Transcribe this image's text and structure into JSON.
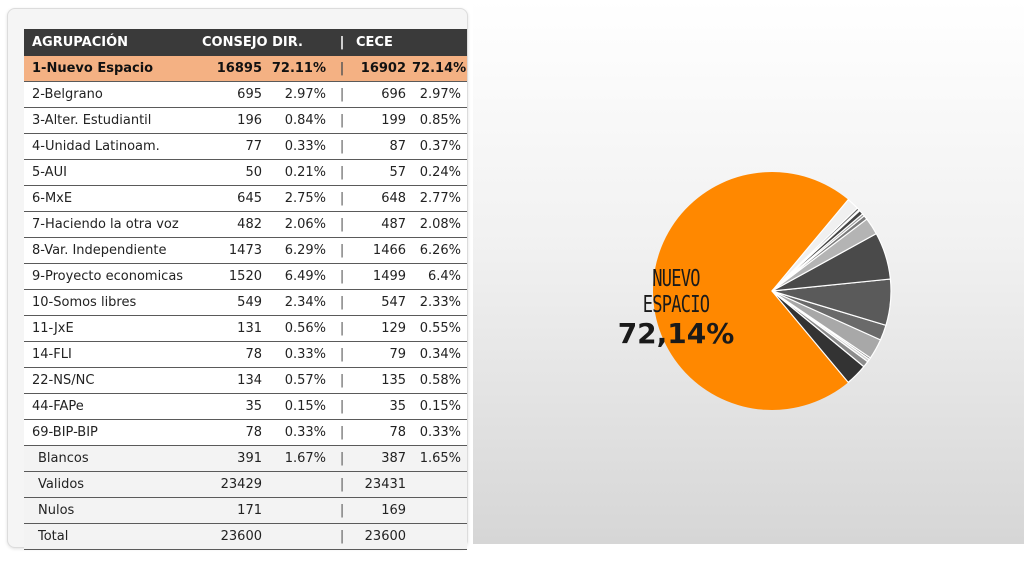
{
  "table": {
    "headers": {
      "group": "AGRUPACIÓN",
      "consejo": "CONSEJO DIR.",
      "sep": "|",
      "cece": "CECE"
    },
    "rows": [
      {
        "name": "1-Nuevo Espacio",
        "cd_votes": "16895",
        "cd_pct": "72.11%",
        "sep": "|",
        "ce_votes": "16902",
        "ce_pct": "72.14%"
      },
      {
        "name": "2-Belgrano",
        "cd_votes": "695",
        "cd_pct": "2.97%",
        "sep": "|",
        "ce_votes": "696",
        "ce_pct": "2.97%"
      },
      {
        "name": "3-Alter. Estudiantil",
        "cd_votes": "196",
        "cd_pct": "0.84%",
        "sep": "|",
        "ce_votes": "199",
        "ce_pct": "0.85%"
      },
      {
        "name": "4-Unidad Latinoam.",
        "cd_votes": "77",
        "cd_pct": "0.33%",
        "sep": "|",
        "ce_votes": "87",
        "ce_pct": "0.37%"
      },
      {
        "name": "5-AUI",
        "cd_votes": "50",
        "cd_pct": "0.21%",
        "sep": "|",
        "ce_votes": "57",
        "ce_pct": "0.24%"
      },
      {
        "name": "6-MxE",
        "cd_votes": "645",
        "cd_pct": "2.75%",
        "sep": "|",
        "ce_votes": "648",
        "ce_pct": "2.77%"
      },
      {
        "name": "7-Haciendo la otra voz",
        "cd_votes": "482",
        "cd_pct": "2.06%",
        "sep": "|",
        "ce_votes": "487",
        "ce_pct": "2.08%"
      },
      {
        "name": "8-Var. Independiente",
        "cd_votes": "1473",
        "cd_pct": "6.29%",
        "sep": "|",
        "ce_votes": "1466",
        "ce_pct": "6.26%"
      },
      {
        "name": "9-Proyecto economicas",
        "cd_votes": "1520",
        "cd_pct": "6.49%",
        "sep": "|",
        "ce_votes": "1499",
        "ce_pct": "6.4%"
      },
      {
        "name": "10-Somos libres",
        "cd_votes": "549",
        "cd_pct": "2.34%",
        "sep": "|",
        "ce_votes": "547",
        "ce_pct": "2.33%"
      },
      {
        "name": "11-JxE",
        "cd_votes": "131",
        "cd_pct": "0.56%",
        "sep": "|",
        "ce_votes": "129",
        "ce_pct": "0.55%"
      },
      {
        "name": "14-FLI",
        "cd_votes": "78",
        "cd_pct": "0.33%",
        "sep": "|",
        "ce_votes": "79",
        "ce_pct": "0.34%"
      },
      {
        "name": "22-NS/NC",
        "cd_votes": "134",
        "cd_pct": "0.57%",
        "sep": "|",
        "ce_votes": "135",
        "ce_pct": "0.58%"
      },
      {
        "name": "44-FAPe",
        "cd_votes": "35",
        "cd_pct": "0.15%",
        "sep": "|",
        "ce_votes": "35",
        "ce_pct": "0.15%"
      },
      {
        "name": "69-BIP-BIP",
        "cd_votes": "78",
        "cd_pct": "0.33%",
        "sep": "|",
        "ce_votes": "78",
        "ce_pct": "0.33%"
      },
      {
        "name": "Blancos",
        "cd_votes": "391",
        "cd_pct": "1.67%",
        "sep": "|",
        "ce_votes": "387",
        "ce_pct": "1.65%"
      },
      {
        "name": "Validos",
        "cd_votes": "23429",
        "cd_pct": "",
        "sep": "|",
        "ce_votes": "23431",
        "ce_pct": ""
      },
      {
        "name": "Nulos",
        "cd_votes": "171",
        "cd_pct": "",
        "sep": "|",
        "ce_votes": "169",
        "ce_pct": ""
      },
      {
        "name": "Total",
        "cd_votes": "23600",
        "cd_pct": "",
        "sep": "|",
        "ce_votes": "23600",
        "ce_pct": ""
      }
    ]
  },
  "colors": {
    "highlight": "#f4b183",
    "winner_slice": "#ff8800",
    "header_bg": "#3a3a3a"
  },
  "chart_data": {
    "type": "pie",
    "series_name": "CECE",
    "label": {
      "name": "NUEVO ESPACIO",
      "value": "72,14%"
    },
    "slices": [
      {
        "name": "1-Nuevo Espacio",
        "value": 72.14,
        "color": "#ff8800"
      },
      {
        "name": "2-Belgrano",
        "value": 2.97,
        "color": "#333333"
      },
      {
        "name": "3-Alter. Estudiantil",
        "value": 0.85,
        "color": "#8c8c8c"
      },
      {
        "name": "4-Unidad Latinoam.",
        "value": 0.37,
        "color": "#d0d0d0"
      },
      {
        "name": "5-AUI",
        "value": 0.24,
        "color": "#555555"
      },
      {
        "name": "6-MxE",
        "value": 2.77,
        "color": "#a8a8a8"
      },
      {
        "name": "7-Haciendo la otra voz",
        "value": 2.08,
        "color": "#6a6a6a"
      },
      {
        "name": "8-Var. Independiente",
        "value": 6.26,
        "color": "#5a5a5a"
      },
      {
        "name": "9-Proyecto economicas",
        "value": 6.4,
        "color": "#4a4a4a"
      },
      {
        "name": "10-Somos libres",
        "value": 2.33,
        "color": "#b4b4b4"
      },
      {
        "name": "11-JxE",
        "value": 0.55,
        "color": "#7a7a7a"
      },
      {
        "name": "14-FLI",
        "value": 0.34,
        "color": "#999999"
      },
      {
        "name": "22-NS/NC",
        "value": 0.58,
        "color": "#444444"
      },
      {
        "name": "44-FAPe",
        "value": 0.15,
        "color": "#bbbbbb"
      },
      {
        "name": "69-BIP-BIP",
        "value": 0.33,
        "color": "#666666"
      },
      {
        "name": "Blancos",
        "value": 1.65,
        "color": "#f0f0f0"
      }
    ]
  }
}
